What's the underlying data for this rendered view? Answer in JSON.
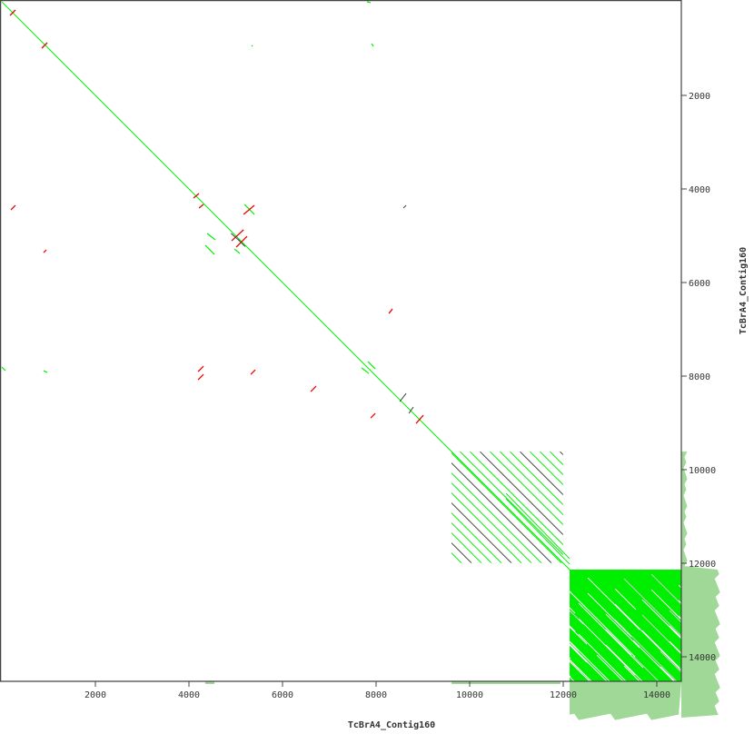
{
  "chart_data": {
    "type": "scatter",
    "subtype": "dot-plot",
    "title": "",
    "xlabel": "TcBrA4_Contig160",
    "ylabel": "TcBrA4_Contig160",
    "xlim": [
      0,
      14540
    ],
    "ylim": [
      0,
      14540
    ],
    "y_inverted": true,
    "y_axis_side": "right",
    "xticks": [
      2000,
      4000,
      6000,
      8000,
      10000,
      12000,
      14000
    ],
    "yticks": [
      2000,
      4000,
      6000,
      8000,
      10000,
      12000,
      14000
    ],
    "grid": false,
    "colors": {
      "forward": "#00ee00",
      "reverse": "#ee0000",
      "dark": "#444444",
      "coverage": "#a0d898",
      "axis": "#444444"
    },
    "main_diagonal": [
      0,
      0,
      14540,
      14540
    ],
    "forward_segments": [
      [
        4389,
        4952,
        4564,
        5089
      ],
      [
        4350,
        5205,
        4544,
        5399
      ],
      [
        4971,
        5283,
        5089,
        5380
      ],
      [
        5186,
        4330,
        5399,
        4544
      ],
      [
        5341,
        932,
        5360,
        952
      ],
      [
        7690,
        7826,
        7846,
        7943
      ],
      [
        7826,
        7690,
        7982,
        7846
      ],
      [
        0,
        7807,
        78,
        7885
      ],
      [
        893,
        7885,
        971,
        7923
      ],
      [
        7807,
        0,
        7885,
        19
      ],
      [
        7904,
        893,
        7943,
        952
      ]
    ],
    "reverse_segments": [
      [
        175,
        291,
        291,
        175
      ],
      [
        855,
        990,
        971,
        874
      ],
      [
        194,
        4447,
        291,
        4350
      ],
      [
        893,
        5360,
        952,
        5302
      ],
      [
        4098,
        4195,
        4214,
        4098
      ],
      [
        4214,
        4408,
        4311,
        4330
      ],
      [
        5167,
        4544,
        5399,
        4350
      ],
      [
        4913,
        5108,
        5166,
        4874
      ],
      [
        5011,
        5243,
        5243,
        5011
      ],
      [
        8273,
        6661,
        8350,
        6564
      ],
      [
        4195,
        7904,
        4311,
        7787
      ],
      [
        4195,
        8079,
        4311,
        7962
      ],
      [
        5322,
        7962,
        5418,
        7865
      ],
      [
        6603,
        8331,
        6719,
        8215
      ],
      [
        7885,
        8894,
        7982,
        8797
      ],
      [
        8855,
        9010,
        9010,
        8836
      ]
    ],
    "dark_segments": [
      [
        8506,
        8545,
        8642,
        8370
      ],
      [
        8700,
        8797,
        8797,
        8661
      ],
      [
        8584,
        4408,
        8642,
        4350
      ],
      [
        4900,
        4950,
        5080,
        5110
      ],
      [
        5050,
        5080,
        5200,
        5230
      ]
    ],
    "repeat_block_hatched": {
      "x": [
        9613,
        11996
      ],
      "y": [
        9613,
        11996
      ]
    },
    "repeat_block_dense": {
      "x": [
        12137,
        14526
      ],
      "y": [
        12137,
        14526
      ]
    }
  }
}
